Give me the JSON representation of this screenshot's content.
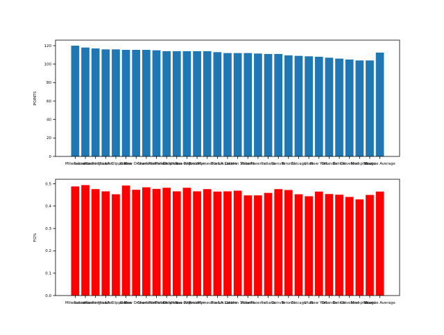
{
  "chart_data": [
    {
      "type": "bar",
      "ylabel": "POINTS",
      "ylim": [
        0,
        126
      ],
      "yticks": [
        0,
        20,
        40,
        60,
        80,
        100,
        120
      ],
      "grid": false,
      "color": "#1f77b4",
      "categories": [
        "Milwaukee",
        "Sacramento",
        "Washington",
        "Houston",
        "LA Clippers",
        "Dallas",
        "New Orleans",
        "Charlotte",
        "Portland",
        "Philadelphia",
        "Oklahoma City",
        "San Antonio",
        "Brooklyn",
        "Minnesota",
        "Boston",
        "LA Lakers",
        "Golden State",
        "Atlanta",
        "Phoenix",
        "Indiana",
        "Denver",
        "Toronto",
        "Chicago",
        "Utah",
        "New York",
        "Orlando",
        "Detroit",
        "Cleveland",
        "Memphis",
        "Miami",
        "League Average"
      ],
      "values": [
        120,
        118,
        117,
        116,
        116,
        115.5,
        115.5,
        115.5,
        115,
        114,
        114,
        114,
        114,
        114,
        113,
        112,
        112,
        112,
        111.5,
        111,
        111,
        109.5,
        109,
        108.5,
        108,
        107,
        106,
        105,
        104,
        104,
        112.5
      ]
    },
    {
      "type": "bar",
      "ylabel": "FG%",
      "ylim": [
        0,
        0.52
      ],
      "yticks": [
        0.0,
        0.1,
        0.2,
        0.3,
        0.4,
        0.5
      ],
      "grid": false,
      "color": "#ff0000",
      "categories": [
        "Milwaukee",
        "Sacramento",
        "Washington",
        "Houston",
        "LA Clippers",
        "Dallas",
        "New Orleans",
        "Charlotte",
        "Portland",
        "Philadelphia",
        "Oklahoma City",
        "San Antonio",
        "Brooklyn",
        "Minnesota",
        "Boston",
        "LA Lakers",
        "Golden State",
        "Atlanta",
        "Phoenix",
        "Indiana",
        "Denver",
        "Toronto",
        "Chicago",
        "Utah",
        "New York",
        "Orlando",
        "Detroit",
        "Cleveland",
        "Memphis",
        "Miami",
        "League Average"
      ],
      "values": [
        0.488,
        0.494,
        0.476,
        0.466,
        0.453,
        0.492,
        0.473,
        0.484,
        0.477,
        0.482,
        0.466,
        0.482,
        0.466,
        0.476,
        0.465,
        0.466,
        0.469,
        0.448,
        0.448,
        0.459,
        0.476,
        0.472,
        0.453,
        0.444,
        0.465,
        0.454,
        0.451,
        0.441,
        0.43,
        0.45,
        0.465
      ]
    }
  ]
}
